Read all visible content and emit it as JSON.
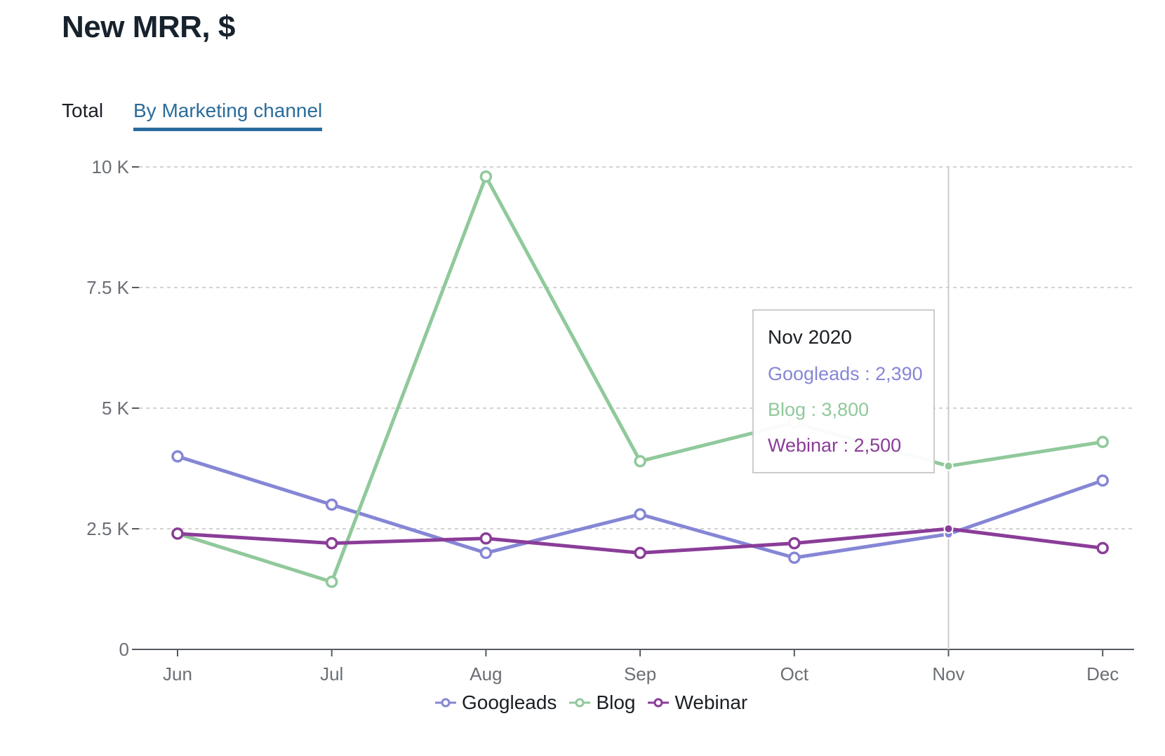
{
  "page": {
    "title": "New MRR, $"
  },
  "tabs": [
    {
      "label": "Total",
      "active": false
    },
    {
      "label": "By Marketing channel",
      "active": true
    }
  ],
  "tooltip": {
    "title": "Nov 2020",
    "rows": [
      {
        "label": "Googleads : 2,390",
        "color": "#8686d6"
      },
      {
        "label": "Blog : 3,800",
        "color": "#90c99b"
      },
      {
        "label": "Webinar : 2,500",
        "color": "#8a3d98"
      }
    ]
  },
  "chart_data": {
    "type": "line",
    "title": "",
    "xlabel": "",
    "ylabel": "",
    "categories": [
      "Jun",
      "Jul",
      "Aug",
      "Sep",
      "Oct",
      "Nov",
      "Dec"
    ],
    "ylim": [
      0,
      10000
    ],
    "yticks": [
      0,
      2500,
      5000,
      7500,
      10000
    ],
    "ytick_labels": [
      "0",
      "2.5 K",
      "5 K",
      "7.5 K",
      "10 K"
    ],
    "grid": true,
    "legend_position": "bottom-center",
    "highlighted_category": "Nov",
    "series": [
      {
        "name": "Googleads",
        "color": "#8686d6",
        "values": [
          4000,
          3000,
          2000,
          2800,
          1900,
          2390,
          3500
        ]
      },
      {
        "name": "Blog",
        "color": "#90c99b",
        "values": [
          2400,
          1400,
          9800,
          3900,
          4700,
          3800,
          4300
        ]
      },
      {
        "name": "Webinar",
        "color": "#8a3d98",
        "values": [
          2400,
          2200,
          2300,
          2000,
          2200,
          2500,
          2100
        ]
      }
    ]
  }
}
